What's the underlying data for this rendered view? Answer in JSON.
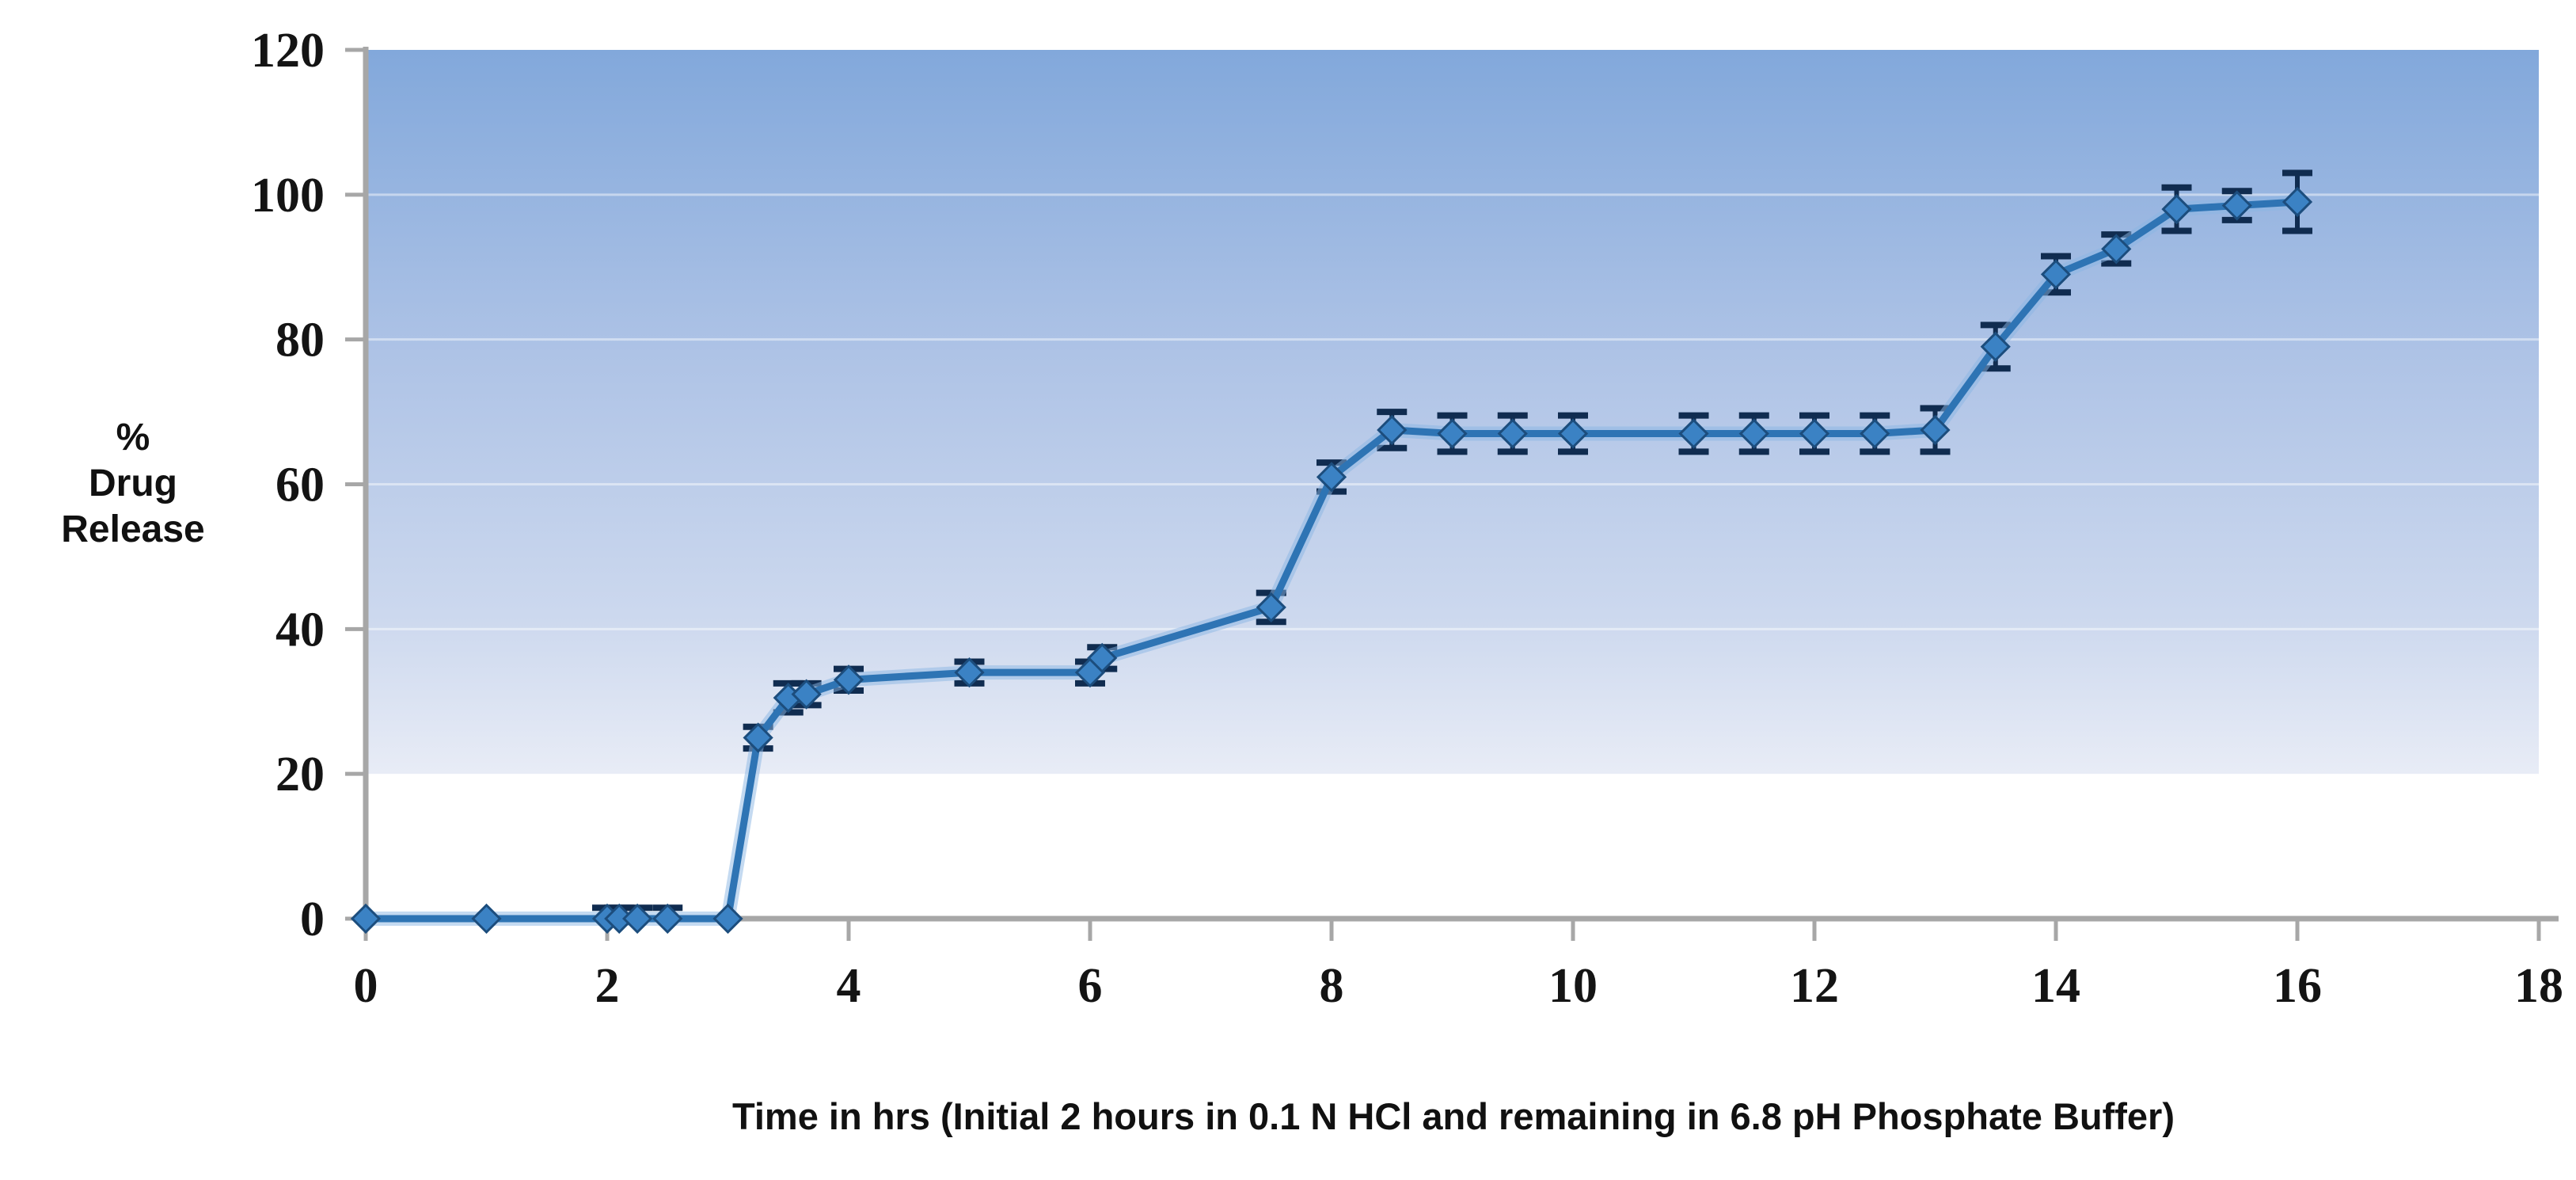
{
  "chart_data": {
    "type": "line",
    "title": "",
    "xlabel": "Time in hrs (Initial 2 hours in 0.1 N HCl and remaining in 6.8 pH Phosphate Buffer)",
    "ylabel_lines": [
      "%",
      "Drug",
      "Release"
    ],
    "xlim": [
      0,
      18
    ],
    "ylim": [
      0,
      120
    ],
    "x_ticks": [
      0,
      2,
      4,
      6,
      8,
      10,
      12,
      14,
      16,
      18
    ],
    "y_ticks": [
      0,
      20,
      40,
      60,
      80,
      100,
      120
    ],
    "grid": "subtle white horizontal lines at 40/60/80/100",
    "legend": "none",
    "plot_background": "vertical blue gradient fading to white below y=20",
    "colors": {
      "line": "#2e74b4",
      "line_glow": "#8ab6e4",
      "marker_fill": "#3b82c4",
      "marker_stroke": "#1c4d7d",
      "error_bar": "#102c50",
      "axis": "#a7a7a7",
      "gradient_top": "#82a8db",
      "gradient_mid": "#aec3e6",
      "gradient_low": "#ccd8ee",
      "gradient_bottom": "#e8ecf6",
      "text": "#111111"
    },
    "series": [
      {
        "name": "% drug release",
        "marker": "diamond",
        "points": [
          {
            "x": 0,
            "y": 0,
            "err": 0
          },
          {
            "x": 1,
            "y": 0,
            "err": 0
          },
          {
            "x": 2,
            "y": 0,
            "err": 1.5
          },
          {
            "x": 2.1,
            "y": 0,
            "err": 1.5
          },
          {
            "x": 2.25,
            "y": 0,
            "err": 1.5
          },
          {
            "x": 2.5,
            "y": 0,
            "err": 1.5
          },
          {
            "x": 3,
            "y": 0,
            "err": 0
          },
          {
            "x": 3.25,
            "y": 25,
            "err": 1.5
          },
          {
            "x": 3.5,
            "y": 30.5,
            "err": 2
          },
          {
            "x": 3.65,
            "y": 31,
            "err": 1.5
          },
          {
            "x": 4,
            "y": 33,
            "err": 1.5
          },
          {
            "x": 5,
            "y": 34,
            "err": 1.5
          },
          {
            "x": 6,
            "y": 34,
            "err": 1.5
          },
          {
            "x": 6.1,
            "y": 36,
            "err": 1.5
          },
          {
            "x": 7.5,
            "y": 43,
            "err": 2
          },
          {
            "x": 8,
            "y": 61,
            "err": 2
          },
          {
            "x": 8.5,
            "y": 67.5,
            "err": 2.5
          },
          {
            "x": 9,
            "y": 67,
            "err": 2.5
          },
          {
            "x": 9.5,
            "y": 67,
            "err": 2.5
          },
          {
            "x": 10,
            "y": 67,
            "err": 2.5
          },
          {
            "x": 11,
            "y": 67,
            "err": 2.5
          },
          {
            "x": 11.5,
            "y": 67,
            "err": 2.5
          },
          {
            "x": 12,
            "y": 67,
            "err": 2.5
          },
          {
            "x": 12.5,
            "y": 67,
            "err": 2.5
          },
          {
            "x": 13,
            "y": 67.5,
            "err": 3
          },
          {
            "x": 13.5,
            "y": 79,
            "err": 3
          },
          {
            "x": 14,
            "y": 89,
            "err": 2.5
          },
          {
            "x": 14.5,
            "y": 92.5,
            "err": 2
          },
          {
            "x": 15,
            "y": 98,
            "err": 3
          },
          {
            "x": 15.5,
            "y": 98.5,
            "err": 2
          },
          {
            "x": 16,
            "y": 99,
            "err": 4
          }
        ]
      }
    ]
  }
}
